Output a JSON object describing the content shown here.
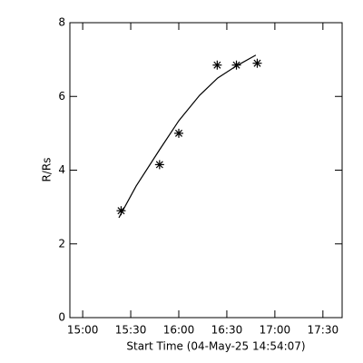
{
  "chart_data": {
    "type": "scatter",
    "x_label": "Start Time (04-May-25 14:54:07)",
    "y_label": "R/Rs",
    "xlim": [
      892,
      1062
    ],
    "ylim": [
      0,
      8
    ],
    "xticks": [
      {
        "value": 900,
        "label": "15:00"
      },
      {
        "value": 930,
        "label": "15:30"
      },
      {
        "value": 960,
        "label": "16:00"
      },
      {
        "value": 990,
        "label": "16:30"
      },
      {
        "value": 1020,
        "label": "17:00"
      },
      {
        "value": 1050,
        "label": "17:30"
      }
    ],
    "yticks": [
      0,
      2,
      4,
      6,
      8
    ],
    "series": [
      {
        "mode": "markers",
        "color": "#000000",
        "x": [
          924,
          948,
          960,
          984,
          996,
          1009
        ],
        "values": [
          2.9,
          4.15,
          5.0,
          6.85,
          6.85,
          6.9
        ]
      },
      {
        "mode": "line",
        "color": "#000000",
        "x": [
          922.6,
          933.4,
          948.1,
          960,
          973,
          984.3,
          995.7,
          1008.1
        ],
        "values": [
          2.71,
          3.57,
          4.56,
          5.34,
          6.03,
          6.5,
          6.82,
          7.12
        ]
      }
    ]
  }
}
